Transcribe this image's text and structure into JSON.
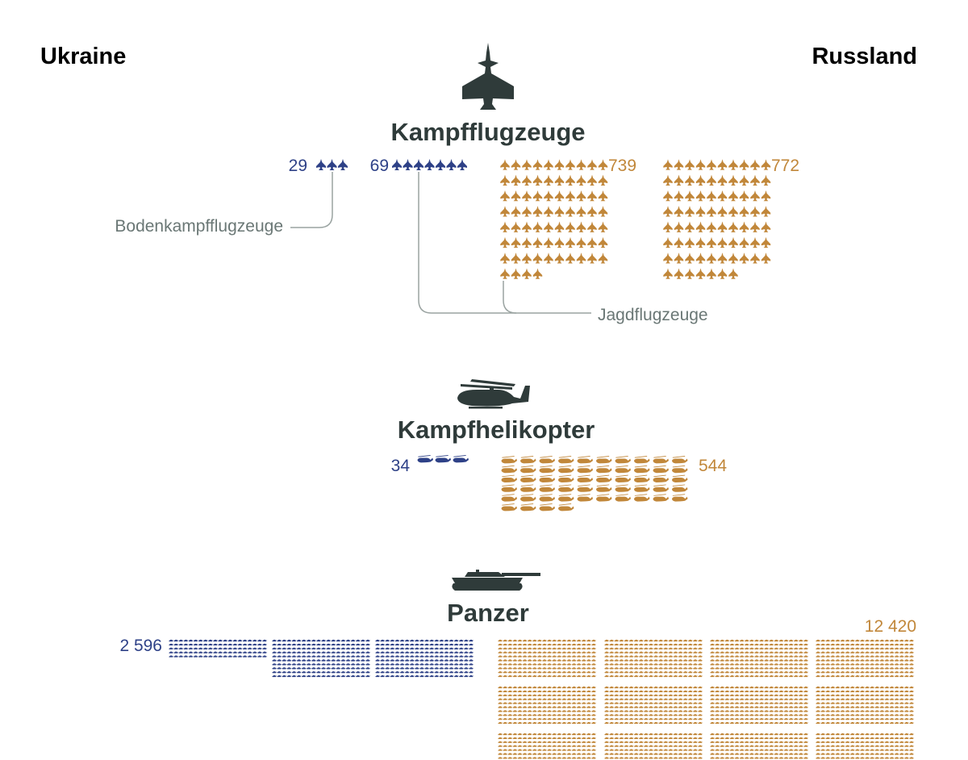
{
  "colors": {
    "ukraine": "#2e4187",
    "russia": "#c1873a",
    "icon": "#2f3b3a",
    "annotation": "#6a7775"
  },
  "header": {
    "left_label": "Ukraine",
    "right_label": "Russland"
  },
  "chart_data": {
    "type": "isotype",
    "sections": [
      {
        "id": "aircraft",
        "title": "Kampfflugzeuge",
        "icon": "fighter-jet-icon",
        "annotations": {
          "ground_attack": "Bodenkampfflugzeuge",
          "fighter": "Jagdflugzeuge"
        },
        "series": [
          {
            "country": "Ukraine",
            "category": "Bodenkampfflugzeuge",
            "value": 29,
            "label": "29",
            "icons": 3
          },
          {
            "country": "Ukraine",
            "category": "Jagdflugzeuge",
            "value": 69,
            "label": "69",
            "icons": 7
          },
          {
            "country": "Russland",
            "category": "Jagdflugzeuge",
            "value": 739,
            "label": "739",
            "icons": 74
          },
          {
            "country": "Russland",
            "category": "Bodenkampfflugzeuge",
            "value": 772,
            "label": "772",
            "icons": 77
          }
        ]
      },
      {
        "id": "helicopters",
        "title": "Kampfhelikopter",
        "icon": "helicopter-icon",
        "series": [
          {
            "country": "Ukraine",
            "value": 34,
            "label": "34",
            "icons": 3
          },
          {
            "country": "Russland",
            "value": 544,
            "label": "544",
            "icons": 54
          }
        ]
      },
      {
        "id": "tanks",
        "title": "Panzer",
        "icon": "tank-icon",
        "series": [
          {
            "country": "Ukraine",
            "value": 2596,
            "label": "2 596"
          },
          {
            "country": "Russland",
            "value": 12420,
            "label": "12 420"
          }
        ]
      }
    ]
  }
}
